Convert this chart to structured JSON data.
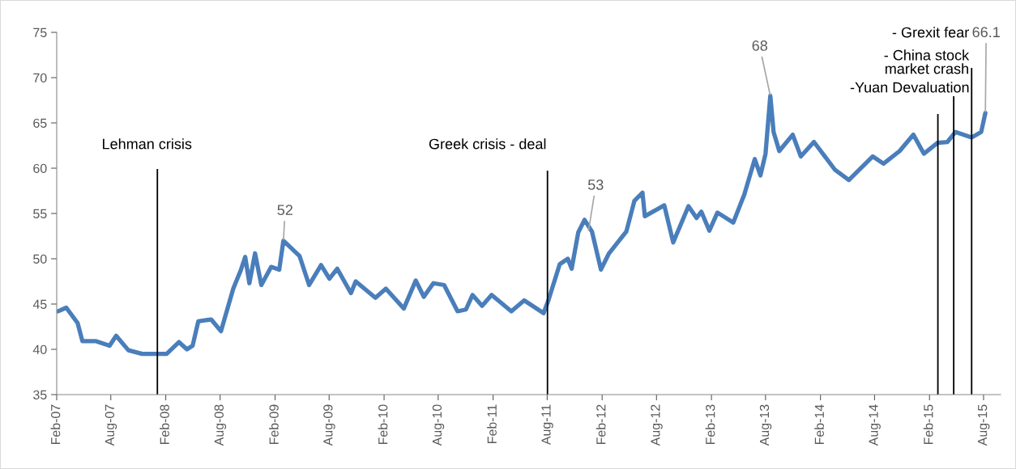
{
  "chart_data": {
    "type": "line",
    "x": [
      "2007-02-06",
      "2007-03-05",
      "2007-04-12",
      "2007-04-28",
      "2007-06-13",
      "2007-07-28",
      "2007-08-19",
      "2007-09-29",
      "2007-11-14",
      "2008-01-02",
      "2008-02-04",
      "2008-03-16",
      "2008-04-12",
      "2008-05-01",
      "2008-05-20",
      "2008-07-02",
      "2008-08-04",
      "2008-09-14",
      "2008-10-10",
      "2008-10-24",
      "2008-11-07",
      "2008-11-26",
      "2008-12-17",
      "2009-01-19",
      "2009-02-15",
      "2009-03-01",
      "2009-04-24",
      "2009-05-26",
      "2009-07-05",
      "2009-08-02",
      "2009-08-28",
      "2009-10-13",
      "2009-10-29",
      "2010-01-03",
      "2010-02-07",
      "2010-04-08",
      "2010-05-18",
      "2010-06-14",
      "2010-07-16",
      "2010-08-21",
      "2010-10-05",
      "2010-11-02",
      "2010-11-24",
      "2010-12-26",
      "2011-01-27",
      "2011-04-03",
      "2011-05-16",
      "2011-07-20",
      "2011-08-05",
      "2011-09-12",
      "2011-10-09",
      "2011-10-22",
      "2011-11-13",
      "2011-12-04",
      "2011-12-29",
      "2012-01-28",
      "2012-02-24",
      "2012-04-22",
      "2012-05-19",
      "2012-06-15",
      "2012-06-23",
      "2012-08-27",
      "2012-09-26",
      "2012-11-16",
      "2012-12-13",
      "2012-12-29",
      "2013-01-25",
      "2013-02-21",
      "2013-04-15",
      "2013-05-22",
      "2013-06-26",
      "2013-07-15",
      "2013-08-01",
      "2013-08-17",
      "2013-08-28",
      "2013-09-16",
      "2013-10-31",
      "2013-11-27",
      "2014-01-10",
      "2014-03-22",
      "2014-05-07",
      "2014-07-26",
      "2014-08-31",
      "2014-10-24",
      "2014-12-09",
      "2015-01-13",
      "2015-02-28",
      "2015-04-02",
      "2015-04-29",
      "2015-06-22",
      "2015-07-24",
      "2015-08-07"
    ],
    "series": [
      {
        "color": "#4a7ebb",
        "values": [
          44.2,
          44.6,
          42.9,
          40.9,
          40.9,
          40.4,
          41.5,
          39.9,
          39.5,
          39.5,
          39.5,
          40.8,
          40.0,
          40.4,
          43.1,
          43.3,
          42.0,
          46.7,
          48.8,
          50.2,
          47.3,
          50.6,
          47.1,
          49.1,
          48.8,
          52.0,
          50.3,
          47.1,
          49.3,
          47.8,
          48.9,
          46.2,
          47.5,
          45.7,
          46.7,
          44.5,
          47.6,
          45.8,
          47.3,
          47.1,
          44.2,
          44.4,
          46.0,
          44.8,
          46.0,
          44.2,
          45.4,
          44.0,
          45.4,
          49.4,
          50.0,
          48.9,
          52.9,
          54.3,
          53.0,
          48.8,
          50.6,
          53.0,
          56.4,
          57.3,
          54.7,
          55.9,
          51.8,
          55.8,
          54.5,
          55.2,
          53.1,
          55.1,
          54.0,
          57.1,
          61.0,
          59.2,
          61.6,
          68.0,
          64.0,
          61.9,
          63.7,
          61.3,
          62.9,
          59.8,
          58.7,
          61.3,
          60.5,
          61.9,
          63.7,
          61.6,
          62.8,
          62.9,
          64.0,
          63.4,
          64.0,
          66.1
        ]
      }
    ],
    "line_style": "solid",
    "xlim": [
      "2007-02-01",
      "2015-09-27"
    ],
    "xticks": [
      {
        "value": "2007-02",
        "label": "Feb-07"
      },
      {
        "value": "2007-08",
        "label": "Aug-07"
      },
      {
        "value": "2008-02",
        "label": "Feb-08"
      },
      {
        "value": "2008-08",
        "label": "Aug-08"
      },
      {
        "value": "2009-02",
        "label": "Feb-09"
      },
      {
        "value": "2009-08",
        "label": "Aug-09"
      },
      {
        "value": "2010-02",
        "label": "Feb-10"
      },
      {
        "value": "2010-08",
        "label": "Aug-10"
      },
      {
        "value": "2011-02",
        "label": "Feb-11"
      },
      {
        "value": "2011-08",
        "label": "Aug-11"
      },
      {
        "value": "2012-02",
        "label": "Feb-12"
      },
      {
        "value": "2012-08",
        "label": "Aug-12"
      },
      {
        "value": "2013-02",
        "label": "Feb-13"
      },
      {
        "value": "2013-08",
        "label": "Aug-13"
      },
      {
        "value": "2014-02",
        "label": "Feb-14"
      },
      {
        "value": "2014-08",
        "label": "Aug-14"
      },
      {
        "value": "2015-02",
        "label": "Feb-15"
      },
      {
        "value": "2015-08",
        "label": "Aug-15"
      }
    ],
    "ylim": [
      35,
      75
    ],
    "yticks": [
      35,
      40,
      45,
      50,
      55,
      60,
      65,
      70,
      75
    ],
    "ref_lines": [
      {
        "axis": "x",
        "value": "2008-01-04",
        "label": "Lehman crisis",
        "color": "#000000"
      },
      {
        "axis": "x",
        "value": "2011-08-02",
        "label": "Greek crisis - deal",
        "color": "#000000"
      },
      {
        "axis": "x",
        "value": "2015-06-22",
        "label": "- Grexit fear",
        "color": "#000000"
      },
      {
        "axis": "x",
        "value": "2015-04-23",
        "label": "- China stock\nmarket crash",
        "color": "#000000"
      },
      {
        "axis": "x",
        "value": "2015-03-01",
        "label": "-Yuan Devaluation",
        "color": "#000000"
      }
    ],
    "annotations": [
      {
        "text": "52",
        "x": "2009-03-01",
        "y": 52
      },
      {
        "text": "53",
        "x": "2011-12-17",
        "y": 53
      },
      {
        "text": "68",
        "x": "2013-08-17",
        "y": 68
      },
      {
        "text": "66.1",
        "x": "2015-08-07",
        "y": 66.1
      }
    ]
  }
}
